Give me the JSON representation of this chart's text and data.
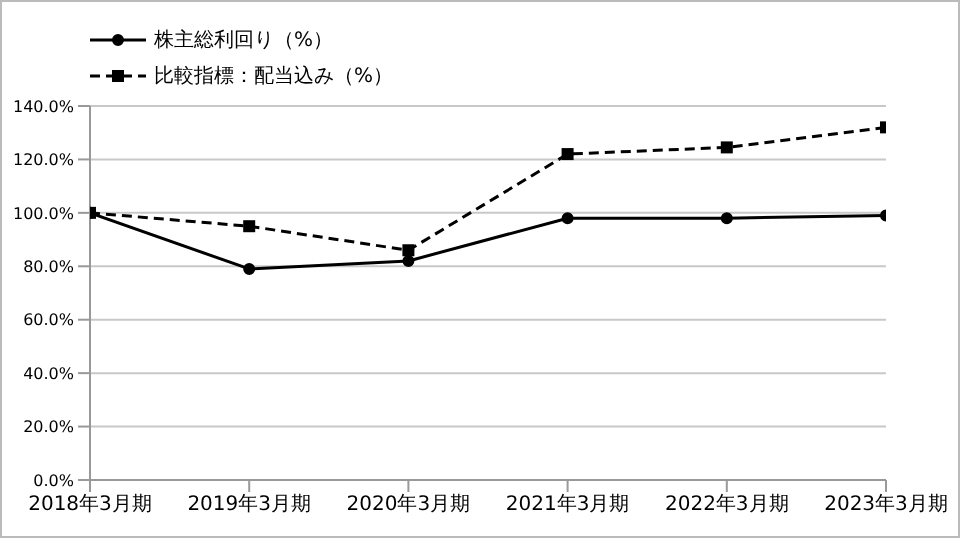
{
  "chart_data": {
    "type": "line",
    "categories": [
      "2018年3月期",
      "2019年3月期",
      "2020年3月期",
      "2021年3月期",
      "2022年3月期",
      "2023年3月期"
    ],
    "series": [
      {
        "name": "株主総利回り（%）",
        "color": "#000000",
        "marker": "circle",
        "line_style": "solid",
        "values": [
          100,
          79,
          82,
          98,
          98,
          99
        ]
      },
      {
        "name": "比較指標：配当込み（%）",
        "color": "#000000",
        "marker": "square",
        "line_style": "dashed",
        "values": [
          100,
          95,
          86,
          122,
          124.5,
          132
        ]
      }
    ],
    "ylim": [
      0,
      140
    ],
    "yticks": [
      {
        "value": 0,
        "label": "0.0%"
      },
      {
        "value": 20,
        "label": "20.0%"
      },
      {
        "value": 40,
        "label": "40.0%"
      },
      {
        "value": 60,
        "label": "60.0%"
      },
      {
        "value": 80,
        "label": "80.0%"
      },
      {
        "value": 100,
        "label": "100.0%"
      },
      {
        "value": 120,
        "label": "120.0%"
      },
      {
        "value": 140,
        "label": "140.0%"
      }
    ],
    "grid": "y",
    "legend": "top left"
  }
}
